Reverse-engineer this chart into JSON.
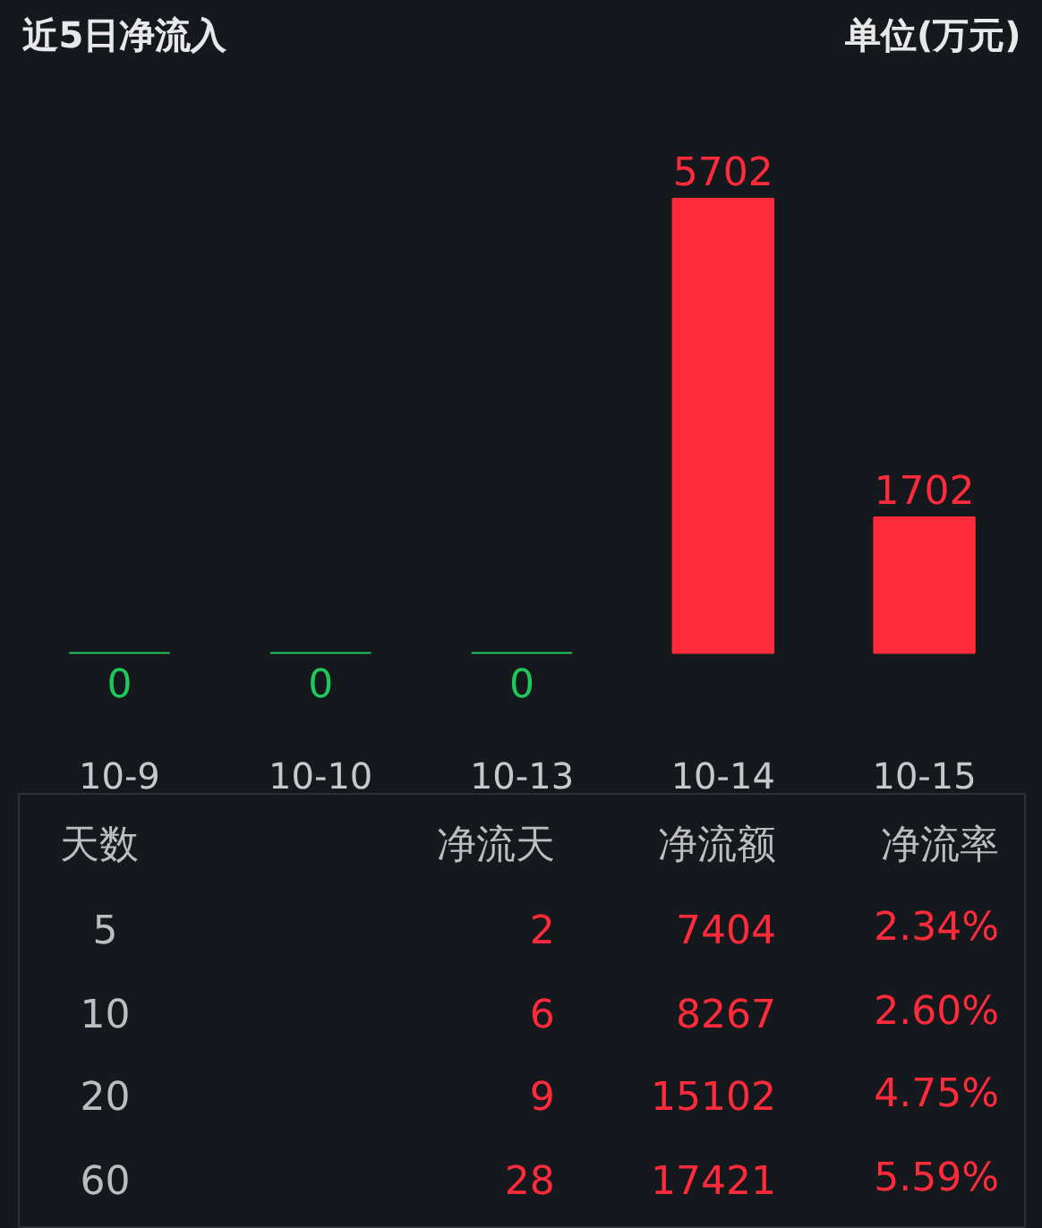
{
  "chart_data": [
    {
      "type": "bar",
      "title": "近5日净流入",
      "subtitle": "单位(万元)",
      "categories": [
        "10-9",
        "10-10",
        "10-13",
        "10-14",
        "10-15"
      ],
      "values": [
        0,
        0,
        0,
        5702,
        1702
      ],
      "colors": [
        "#1ec85a",
        "#1ec85a",
        "#1ec85a",
        "#ff2a3a",
        "#ff2a3a"
      ],
      "data_labels": true,
      "grid": false
    },
    {
      "type": "other",
      "annotations": [
        "天数",
        "净流天",
        "净流额",
        "净流率",
        "5",
        "2",
        "7404",
        "2.34%",
        "10",
        "6",
        "8267",
        "2.60%",
        "20",
        "9",
        "15102",
        "4.75%",
        "60",
        "28",
        "17421",
        "5.59%"
      ]
    }
  ]
}
